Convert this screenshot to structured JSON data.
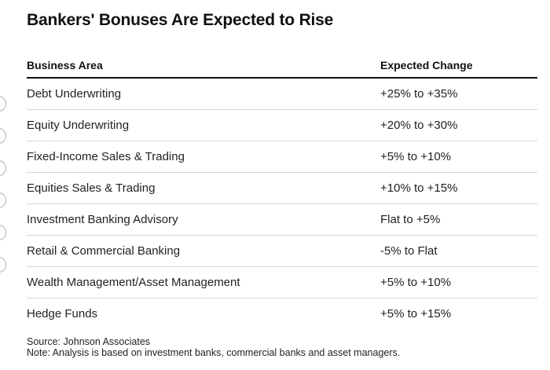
{
  "title": "Bankers' Bonuses Are Expected to Rise",
  "table": {
    "headers": {
      "area": "Business Area",
      "change": "Expected Change"
    },
    "rows": [
      {
        "area": "Debt Underwriting",
        "change": "+25% to +35%"
      },
      {
        "area": "Equity Underwriting",
        "change": "+20% to +30%"
      },
      {
        "area": "Fixed-Income Sales & Trading",
        "change": "+5% to +10%"
      },
      {
        "area": "Equities Sales & Trading",
        "change": "+10% to +15%"
      },
      {
        "area": "Investment Banking Advisory",
        "change": "Flat to +5%"
      },
      {
        "area": "Retail & Commercial Banking",
        "change": "-5% to Flat"
      },
      {
        "area": "Wealth Management/Asset Management",
        "change": "+5% to +10%"
      },
      {
        "area": "Hedge Funds",
        "change": "+5% to +15%"
      }
    ]
  },
  "footer": {
    "source": "Source: Johnson Associates",
    "note": "Note: Analysis is based on investment banks, commercial banks and asset managers."
  }
}
